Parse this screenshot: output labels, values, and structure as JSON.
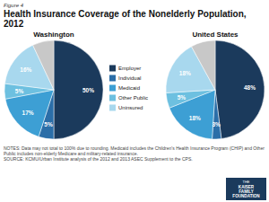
{
  "chart_data": [
    {
      "type": "pie",
      "title": "Health Insurance Coverage of the Nonelderly Population,\n2012",
      "subtitle": "Washington",
      "categories": [
        "Employer",
        "Individual",
        "Medicaid",
        "Other Public",
        "Uninsured",
        null
      ],
      "values": [
        50,
        5,
        17,
        5,
        16,
        7
      ],
      "value_labels": [
        "50%",
        "5%",
        "17%",
        "5%",
        "16%",
        null
      ],
      "data_labels": true,
      "colors": [
        "#1b3a5c",
        "#2b6ea8",
        "#3d9fd4",
        "#6dc0e0",
        "#a8d8ee",
        "#c8c8c8"
      ],
      "legend": "right",
      "annotations": [
        "Figure 4",
        "NOTES: Data may not total to 100% due to rounding. Medicaid includes the Children's Health Insurance Program (CHIP) and Other\nPublic includes non-elderly Medicare and military-related insurance.\nSOURCE: KCMU/Urban Institute analysis of the 2012 and 2013 ASEC Supplement to the CPS.",
        "THE",
        "KAISER\nFAMILY\nFOUNDATION"
      ]
    },
    {
      "type": "pie",
      "subtitle": "United States",
      "categories": [
        "Employer",
        "Individual",
        "Medicaid",
        "Other Public",
        "Uninsured",
        null
      ],
      "values": [
        48,
        3,
        18,
        5,
        18,
        8
      ],
      "value_labels": [
        "48%",
        "3%",
        "18%",
        "5%",
        "18%",
        null
      ],
      "data_labels": true,
      "colors": [
        "#1b3a5c",
        "#2b6ea8",
        "#3d9fd4",
        "#6dc0e0",
        "#a8d8ee",
        "#c8c8c8"
      ]
    }
  ]
}
